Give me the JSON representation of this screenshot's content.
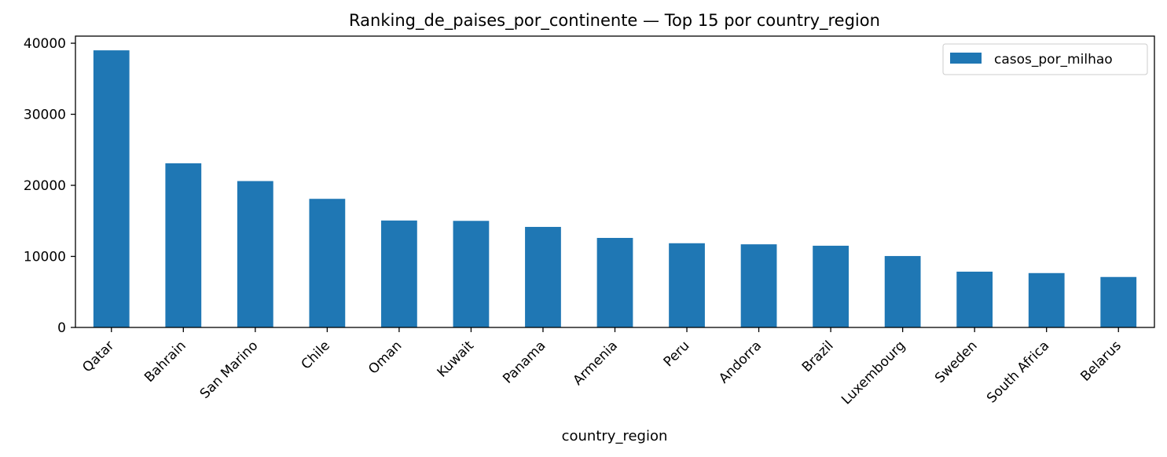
{
  "chart_data": {
    "type": "bar",
    "title": "Ranking_de_paises_por_continente — Top 15 por country_region",
    "xlabel": "country_region",
    "ylabel": "",
    "categories": [
      "Qatar",
      "Bahrain",
      "San Marino",
      "Chile",
      "Oman",
      "Kuwait",
      "Panama",
      "Armenia",
      "Peru",
      "Andorra",
      "Brazil",
      "Luxembourg",
      "Sweden",
      "South Africa",
      "Belarus"
    ],
    "series": [
      {
        "name": "casos_por_milhao",
        "values": [
          39000,
          23100,
          20600,
          18100,
          15050,
          15000,
          14150,
          12600,
          11850,
          11700,
          11500,
          10050,
          7850,
          7650,
          7100
        ],
        "color": "#1f77b4"
      }
    ],
    "ylim": [
      0,
      41000
    ],
    "yticks": [
      0,
      10000,
      20000,
      30000,
      40000
    ],
    "legend": "top-right",
    "grid": false
  }
}
